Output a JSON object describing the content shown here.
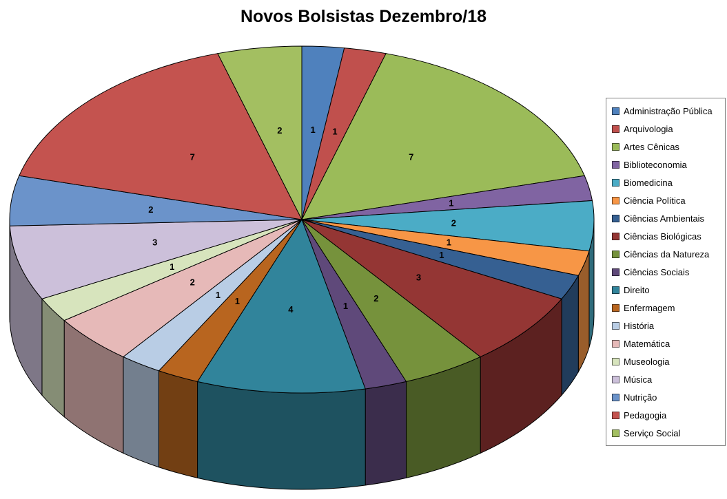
{
  "title": "Novos Bolsistas Dezembro/18",
  "chart_data": {
    "type": "pie",
    "style": "3d",
    "title": "Novos Bolsistas Dezembro/18",
    "total": 43,
    "legend_position": "right",
    "data_labels": "values-inside-slices",
    "start_angle_deg": 0,
    "direction": "clockwise",
    "segments": [
      {
        "label": "Administração Pública",
        "value": 1,
        "color": "#4F81BD"
      },
      {
        "label": "Arquivologia",
        "value": 1,
        "color": "#C0504D"
      },
      {
        "label": "Artes Cênicas",
        "value": 7,
        "color": "#9BBB59"
      },
      {
        "label": "Biblioteconomia",
        "value": 1,
        "color": "#8064A2"
      },
      {
        "label": "Biomedicina",
        "value": 2,
        "color": "#4BACC6"
      },
      {
        "label": "Ciência Política",
        "value": 1,
        "color": "#F79646"
      },
      {
        "label": "Ciências Ambientais",
        "value": 1,
        "color": "#366092"
      },
      {
        "label": "Ciências Biológicas",
        "value": 3,
        "color": "#943634"
      },
      {
        "label": "Ciências da Natureza",
        "value": 2,
        "color": "#76923C"
      },
      {
        "label": "Ciências Sociais",
        "value": 1,
        "color": "#5F497A"
      },
      {
        "label": "Direito",
        "value": 4,
        "color": "#31849B"
      },
      {
        "label": "Enfermagem",
        "value": 1,
        "color": "#B8651F"
      },
      {
        "label": "História",
        "value": 1,
        "color": "#B9CDE5"
      },
      {
        "label": "Matemática",
        "value": 2,
        "color": "#E6B9B8"
      },
      {
        "label": "Museologia",
        "value": 1,
        "color": "#D7E4BD"
      },
      {
        "label": "Música",
        "value": 3,
        "color": "#CCC0DA"
      },
      {
        "label": "Nutrição",
        "value": 2,
        "color": "#6B93CA"
      },
      {
        "label": "Pedagogia",
        "value": 7,
        "color": "#C4534F"
      },
      {
        "label": "Serviço Social",
        "value": 2,
        "color": "#A3BF61"
      }
    ]
  }
}
